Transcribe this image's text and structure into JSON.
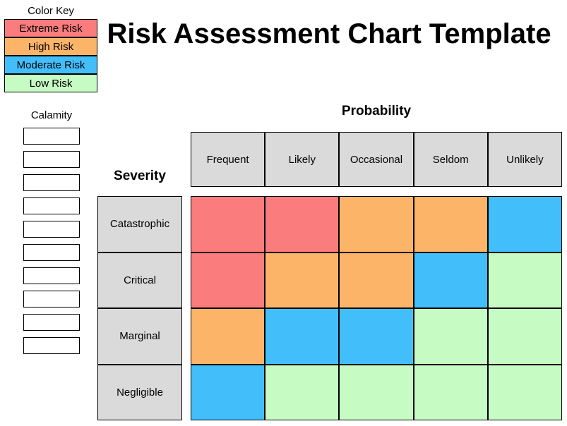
{
  "title": "Risk Assessment Chart Template",
  "color_key": {
    "title": "Color Key",
    "items": [
      {
        "label": "Extreme Risk",
        "level": "extreme"
      },
      {
        "label": "High Risk",
        "level": "high"
      },
      {
        "label": "Moderate Risk",
        "level": "moderate"
      },
      {
        "label": "Low Risk",
        "level": "low"
      }
    ]
  },
  "colors": {
    "extreme": "#FB7C7D",
    "high": "#FCB468",
    "moderate": "#42BFFA",
    "low": "#C7FBC4",
    "header_bg": "#DADADA",
    "border": "#000000"
  },
  "calamity": {
    "label": "Calamity",
    "box_count": 10
  },
  "matrix": {
    "probability_label": "Probability",
    "severity_label": "Severity",
    "columns": [
      "Frequent",
      "Likely",
      "Occasional",
      "Seldom",
      "Unlikely"
    ],
    "rows": [
      "Catastrophic",
      "Critical",
      "Marginal",
      "Negligible"
    ],
    "cells": [
      [
        "extreme",
        "extreme",
        "high",
        "high",
        "moderate"
      ],
      [
        "extreme",
        "high",
        "high",
        "moderate",
        "low"
      ],
      [
        "high",
        "moderate",
        "moderate",
        "low",
        "low"
      ],
      [
        "moderate",
        "low",
        "low",
        "low",
        "low"
      ]
    ]
  },
  "chart_data": {
    "type": "heatmap",
    "title": "Risk Assessment Chart Template",
    "xlabel": "Probability",
    "ylabel": "Severity",
    "x_categories": [
      "Frequent",
      "Likely",
      "Occasional",
      "Seldom",
      "Unlikely"
    ],
    "y_categories": [
      "Catastrophic",
      "Critical",
      "Marginal",
      "Negligible"
    ],
    "values": [
      [
        "Extreme Risk",
        "Extreme Risk",
        "High Risk",
        "High Risk",
        "Moderate Risk"
      ],
      [
        "Extreme Risk",
        "High Risk",
        "High Risk",
        "Moderate Risk",
        "Low Risk"
      ],
      [
        "High Risk",
        "Moderate Risk",
        "Moderate Risk",
        "Low Risk",
        "Low Risk"
      ],
      [
        "Moderate Risk",
        "Low Risk",
        "Low Risk",
        "Low Risk",
        "Low Risk"
      ]
    ],
    "legend": [
      "Extreme Risk",
      "High Risk",
      "Moderate Risk",
      "Low Risk"
    ],
    "legend_position": "top-left",
    "grid": true
  }
}
